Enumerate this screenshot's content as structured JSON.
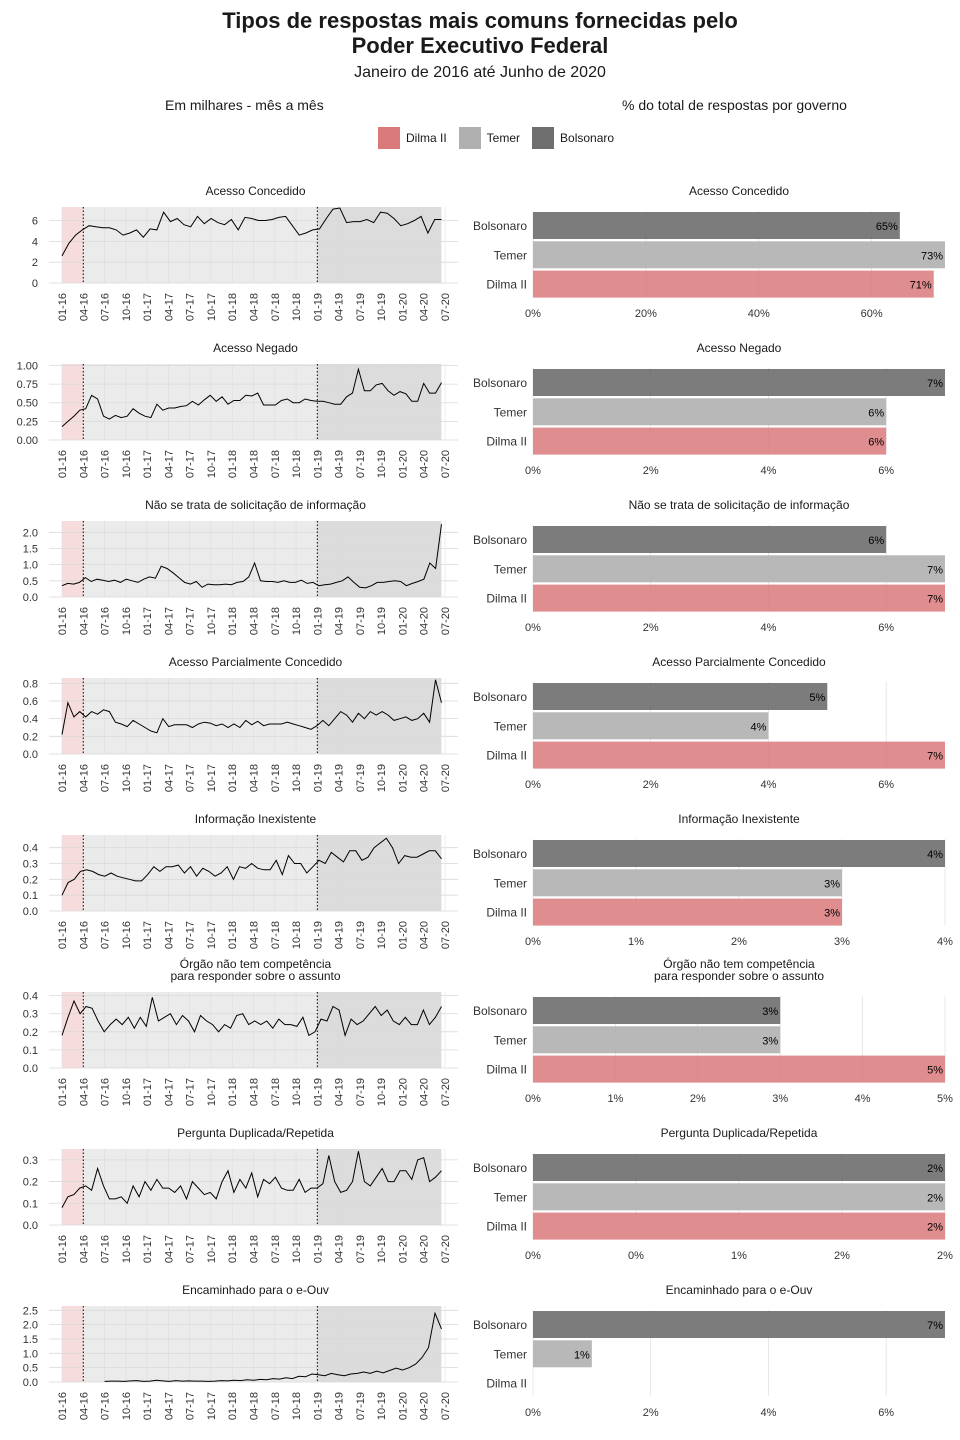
{
  "header": {
    "title_line1": "Tipos de respostas mais comuns fornecidas pelo",
    "title_line2": "Poder Executivo Federal",
    "subtitle": "Janeiro de 2016 até Junho de 2020",
    "left_caption": "Em milhares - mês a mês",
    "right_caption": "% do total de respostas por governo"
  },
  "legend": [
    {
      "label": "Dilma II",
      "color": "#D9797B"
    },
    {
      "label": "Temer",
      "color": "#B0B0B0"
    },
    {
      "label": "Bolsonaro",
      "color": "#6E6E6E"
    }
  ],
  "colors": {
    "dilma": "#D9797B",
    "temer": "#B0B0B0",
    "bolsonaro": "#6E6E6E",
    "period_dilma": "#F6DCDC",
    "period_temer": "#EBEBEB",
    "period_bolsonaro": "#DCDCDC",
    "grid": "#D9D9D9",
    "line": "#000000"
  },
  "chart_data": [
    {
      "type": "line",
      "title": "Acesso Concedido",
      "xlabel": "",
      "ylabel": "Em milhares",
      "x_ticks": [
        "01-16",
        "04-16",
        "07-16",
        "10-16",
        "01-17",
        "04-17",
        "07-17",
        "10-17",
        "01-18",
        "04-18",
        "07-18",
        "10-18",
        "01-19",
        "04-19",
        "07-19",
        "10-19",
        "01-20",
        "04-20",
        "07-20"
      ],
      "y_ticks": [
        "0",
        "2",
        "4",
        "6"
      ],
      "ylim": [
        0,
        7.3
      ],
      "period_boundaries": [
        "04-16",
        "01-19"
      ],
      "y": [
        2.6,
        3.8,
        4.6,
        5.1,
        5.5,
        5.4,
        5.3,
        5.3,
        5.1,
        4.6,
        4.8,
        5.1,
        4.4,
        5.2,
        5.1,
        6.8,
        5.9,
        6.2,
        5.6,
        5.4,
        6.4,
        5.7,
        6.2,
        5.8,
        5.6,
        6.1,
        5.1,
        6.3,
        6.2,
        6.0,
        6.0,
        6.1,
        6.3,
        6.4,
        5.5,
        4.6,
        4.8,
        5.1,
        5.2,
        6.2,
        7.1,
        7.2,
        5.8,
        5.9,
        5.9,
        6.1,
        5.8,
        6.8,
        6.7,
        6.2,
        5.5,
        5.7,
        6.0,
        6.4,
        4.8,
        6.1,
        6.1
      ]
    },
    {
      "type": "line",
      "title": "Acesso Negado",
      "xlabel": "",
      "ylabel": "Em milhares",
      "x_ticks": [
        "01-16",
        "04-16",
        "07-16",
        "10-16",
        "01-17",
        "04-17",
        "07-17",
        "10-17",
        "01-18",
        "04-18",
        "07-18",
        "10-18",
        "01-19",
        "04-19",
        "07-19",
        "10-19",
        "01-20",
        "04-20",
        "07-20"
      ],
      "y_ticks": [
        "0.00",
        "0.25",
        "0.50",
        "0.75",
        "1.00"
      ],
      "ylim": [
        0,
        1.02
      ],
      "period_boundaries": [
        "04-16",
        "01-19"
      ],
      "y": [
        0.18,
        0.25,
        0.32,
        0.4,
        0.42,
        0.6,
        0.55,
        0.32,
        0.28,
        0.33,
        0.3,
        0.32,
        0.42,
        0.36,
        0.32,
        0.3,
        0.48,
        0.4,
        0.43,
        0.43,
        0.45,
        0.46,
        0.52,
        0.47,
        0.54,
        0.6,
        0.52,
        0.58,
        0.48,
        0.53,
        0.53,
        0.6,
        0.59,
        0.63,
        0.47,
        0.47,
        0.47,
        0.53,
        0.55,
        0.5,
        0.5,
        0.55,
        0.53,
        0.52,
        0.52,
        0.5,
        0.48,
        0.48,
        0.58,
        0.63,
        0.95,
        0.66,
        0.66,
        0.74,
        0.76,
        0.66,
        0.6,
        0.65,
        0.62,
        0.52,
        0.52,
        0.76,
        0.63,
        0.63,
        0.77
      ]
    },
    {
      "type": "line",
      "title": "Não se trata de solicitação de informação",
      "xlabel": "",
      "ylabel": "Em milhares",
      "x_ticks": [
        "01-16",
        "04-16",
        "07-16",
        "10-16",
        "01-17",
        "04-17",
        "07-17",
        "10-17",
        "01-18",
        "04-18",
        "07-18",
        "10-18",
        "01-19",
        "04-19",
        "07-19",
        "10-19",
        "01-20",
        "04-20",
        "07-20"
      ],
      "y_ticks": [
        "0.0",
        "0.5",
        "1.0",
        "1.5",
        "2.0"
      ],
      "ylim": [
        0,
        2.35
      ],
      "period_boundaries": [
        "04-16",
        "01-19"
      ],
      "y": [
        0.35,
        0.42,
        0.4,
        0.45,
        0.6,
        0.48,
        0.55,
        0.52,
        0.48,
        0.52,
        0.45,
        0.55,
        0.5,
        0.45,
        0.55,
        0.62,
        0.58,
        0.95,
        0.88,
        0.75,
        0.6,
        0.45,
        0.4,
        0.48,
        0.3,
        0.4,
        0.38,
        0.38,
        0.4,
        0.38,
        0.45,
        0.48,
        0.62,
        1.05,
        0.5,
        0.48,
        0.48,
        0.45,
        0.5,
        0.45,
        0.45,
        0.52,
        0.42,
        0.45,
        0.35,
        0.38,
        0.4,
        0.45,
        0.5,
        0.62,
        0.45,
        0.3,
        0.28,
        0.35,
        0.45,
        0.45,
        0.48,
        0.5,
        0.48,
        0.35,
        0.42,
        0.48,
        0.55,
        1.05,
        0.88,
        2.25
      ]
    },
    {
      "type": "line",
      "title": "Acesso Parcialmente Concedido",
      "xlabel": "",
      "ylabel": "Em milhares",
      "x_ticks": [
        "01-16",
        "04-16",
        "07-16",
        "10-16",
        "01-17",
        "04-17",
        "07-17",
        "10-17",
        "01-18",
        "04-18",
        "07-18",
        "10-18",
        "01-19",
        "04-19",
        "07-19",
        "10-19",
        "01-20",
        "04-20",
        "07-20"
      ],
      "y_ticks": [
        "0.0",
        "0.2",
        "0.4",
        "0.6",
        "0.8"
      ],
      "ylim": [
        0,
        0.86
      ],
      "period_boundaries": [
        "04-16",
        "01-19"
      ],
      "y": [
        0.22,
        0.58,
        0.42,
        0.48,
        0.42,
        0.48,
        0.45,
        0.5,
        0.48,
        0.36,
        0.34,
        0.31,
        0.38,
        0.34,
        0.3,
        0.26,
        0.24,
        0.4,
        0.31,
        0.33,
        0.33,
        0.33,
        0.3,
        0.34,
        0.36,
        0.35,
        0.32,
        0.34,
        0.3,
        0.34,
        0.3,
        0.38,
        0.33,
        0.37,
        0.32,
        0.34,
        0.34,
        0.34,
        0.36,
        0.34,
        0.32,
        0.3,
        0.28,
        0.32,
        0.38,
        0.32,
        0.4,
        0.48,
        0.44,
        0.36,
        0.46,
        0.4,
        0.48,
        0.44,
        0.48,
        0.44,
        0.38,
        0.4,
        0.42,
        0.38,
        0.4,
        0.46,
        0.36,
        0.84,
        0.58
      ]
    },
    {
      "type": "line",
      "title": "Informação Inexistente",
      "xlabel": "",
      "ylabel": "Em milhares",
      "x_ticks": [
        "01-16",
        "04-16",
        "07-16",
        "10-16",
        "01-17",
        "04-17",
        "07-17",
        "10-17",
        "01-18",
        "04-18",
        "07-18",
        "10-18",
        "01-19",
        "04-19",
        "07-19",
        "10-19",
        "01-20",
        "04-20",
        "07-20"
      ],
      "y_ticks": [
        "0.0",
        "0.1",
        "0.2",
        "0.3",
        "0.4"
      ],
      "ylim": [
        0,
        0.48
      ],
      "period_boundaries": [
        "04-16",
        "01-19"
      ],
      "y": [
        0.1,
        0.18,
        0.2,
        0.25,
        0.26,
        0.25,
        0.23,
        0.22,
        0.24,
        0.22,
        0.21,
        0.2,
        0.19,
        0.19,
        0.23,
        0.28,
        0.25,
        0.28,
        0.28,
        0.29,
        0.24,
        0.28,
        0.22,
        0.27,
        0.25,
        0.22,
        0.24,
        0.28,
        0.2,
        0.28,
        0.27,
        0.3,
        0.27,
        0.26,
        0.26,
        0.32,
        0.23,
        0.35,
        0.3,
        0.3,
        0.24,
        0.28,
        0.32,
        0.3,
        0.37,
        0.34,
        0.31,
        0.38,
        0.38,
        0.32,
        0.34,
        0.4,
        0.43,
        0.46,
        0.4,
        0.3,
        0.35,
        0.34,
        0.34,
        0.36,
        0.38,
        0.38,
        0.33
      ]
    },
    {
      "type": "line",
      "title": "Órgão não tem competência\npara responder sobre o assunto",
      "xlabel": "",
      "ylabel": "Em milhares",
      "x_ticks": [
        "01-16",
        "04-16",
        "07-16",
        "10-16",
        "01-17",
        "04-17",
        "07-17",
        "10-17",
        "01-18",
        "04-18",
        "07-18",
        "10-18",
        "01-19",
        "04-19",
        "07-19",
        "10-19",
        "01-20",
        "04-20",
        "07-20"
      ],
      "y_ticks": [
        "0.0",
        "0.1",
        "0.2",
        "0.3",
        "0.4"
      ],
      "ylim": [
        0,
        0.42
      ],
      "period_boundaries": [
        "04-16",
        "01-19"
      ],
      "y": [
        0.18,
        0.28,
        0.37,
        0.3,
        0.34,
        0.33,
        0.26,
        0.2,
        0.24,
        0.27,
        0.24,
        0.28,
        0.22,
        0.28,
        0.23,
        0.39,
        0.26,
        0.28,
        0.3,
        0.24,
        0.29,
        0.26,
        0.2,
        0.29,
        0.26,
        0.24,
        0.2,
        0.24,
        0.22,
        0.29,
        0.3,
        0.24,
        0.26,
        0.24,
        0.26,
        0.22,
        0.27,
        0.24,
        0.24,
        0.23,
        0.28,
        0.18,
        0.2,
        0.27,
        0.26,
        0.34,
        0.32,
        0.18,
        0.27,
        0.24,
        0.26,
        0.3,
        0.34,
        0.29,
        0.32,
        0.26,
        0.24,
        0.28,
        0.24,
        0.24,
        0.32,
        0.24,
        0.28,
        0.34
      ]
    },
    {
      "type": "line",
      "title": "Pergunta Duplicada/Repetida",
      "xlabel": "",
      "ylabel": "Em milhares",
      "x_ticks": [
        "01-16",
        "04-16",
        "07-16",
        "10-16",
        "01-17",
        "04-17",
        "07-17",
        "10-17",
        "01-18",
        "04-18",
        "07-18",
        "10-18",
        "01-19",
        "04-19",
        "07-19",
        "10-19",
        "01-20",
        "04-20",
        "07-20"
      ],
      "y_ticks": [
        "0.0",
        "0.1",
        "0.2",
        "0.3"
      ],
      "ylim": [
        0,
        0.35
      ],
      "period_boundaries": [
        "04-16",
        "01-19"
      ],
      "y": [
        0.08,
        0.13,
        0.14,
        0.17,
        0.18,
        0.16,
        0.26,
        0.18,
        0.12,
        0.12,
        0.13,
        0.1,
        0.18,
        0.13,
        0.2,
        0.16,
        0.21,
        0.17,
        0.17,
        0.15,
        0.18,
        0.12,
        0.2,
        0.17,
        0.14,
        0.15,
        0.12,
        0.2,
        0.25,
        0.15,
        0.21,
        0.17,
        0.24,
        0.13,
        0.21,
        0.19,
        0.22,
        0.17,
        0.16,
        0.16,
        0.21,
        0.15,
        0.17,
        0.17,
        0.19,
        0.32,
        0.2,
        0.15,
        0.16,
        0.2,
        0.34,
        0.2,
        0.18,
        0.22,
        0.26,
        0.2,
        0.2,
        0.25,
        0.25,
        0.21,
        0.3,
        0.31,
        0.2,
        0.22,
        0.25
      ]
    },
    {
      "type": "line",
      "title": "Encaminhado para o e-Ouv",
      "xlabel": "",
      "ylabel": "Em milhares",
      "x_ticks": [
        "01-16",
        "04-16",
        "07-16",
        "10-16",
        "01-17",
        "04-17",
        "07-17",
        "10-17",
        "01-18",
        "04-18",
        "07-18",
        "10-18",
        "01-19",
        "04-19",
        "07-19",
        "10-19",
        "01-20",
        "04-20",
        "07-20"
      ],
      "y_ticks": [
        "0.0",
        "0.5",
        "1.0",
        "1.5",
        "2.0",
        "2.5"
      ],
      "ylim": [
        0,
        2.65
      ],
      "period_boundaries": [
        "04-16",
        "01-19"
      ],
      "y_start_index": 6,
      "y": [
        0.02,
        0.03,
        0.03,
        0.02,
        0.04,
        0.05,
        0.02,
        0.03,
        0.06,
        0.04,
        0.02,
        0.05,
        0.03,
        0.04,
        0.03,
        0.03,
        0.02,
        0.03,
        0.05,
        0.04,
        0.06,
        0.05,
        0.08,
        0.06,
        0.09,
        0.08,
        0.12,
        0.1,
        0.15,
        0.12,
        0.2,
        0.18,
        0.28,
        0.25,
        0.22,
        0.3,
        0.25,
        0.22,
        0.28,
        0.3,
        0.35,
        0.3,
        0.38,
        0.32,
        0.4,
        0.48,
        0.42,
        0.5,
        0.62,
        0.85,
        1.2,
        2.4,
        1.85
      ]
    },
    {
      "type": "bar",
      "orientation": "horizontal",
      "title": "Acesso Concedido",
      "categories": [
        "Bolsonaro",
        "Temer",
        "Dilma II"
      ],
      "values": [
        65,
        73,
        71
      ],
      "value_labels": [
        "65%",
        "73%",
        "71%"
      ],
      "x_ticks": [
        "0%",
        "20%",
        "40%",
        "60%"
      ],
      "x_tick_values": [
        0,
        20,
        40,
        60
      ],
      "xlim": [
        0,
        73
      ]
    },
    {
      "type": "bar",
      "orientation": "horizontal",
      "title": "Acesso Negado",
      "categories": [
        "Bolsonaro",
        "Temer",
        "Dilma II"
      ],
      "values": [
        7,
        6,
        6
      ],
      "value_labels": [
        "7%",
        "6%",
        "6%"
      ],
      "x_ticks": [
        "0%",
        "2%",
        "4%",
        "6%"
      ],
      "x_tick_values": [
        0,
        2,
        4,
        6
      ],
      "xlim": [
        0,
        7
      ]
    },
    {
      "type": "bar",
      "orientation": "horizontal",
      "title": "Não se trata de solicitação de informação",
      "categories": [
        "Bolsonaro",
        "Temer",
        "Dilma II"
      ],
      "values": [
        6,
        7,
        7
      ],
      "value_labels": [
        "6%",
        "7%",
        "7%"
      ],
      "x_ticks": [
        "0%",
        "2%",
        "4%",
        "6%"
      ],
      "x_tick_values": [
        0,
        2,
        4,
        6
      ],
      "xlim": [
        0,
        7
      ]
    },
    {
      "type": "bar",
      "orientation": "horizontal",
      "title": "Acesso Parcialmente Concedido",
      "categories": [
        "Bolsonaro",
        "Temer",
        "Dilma II"
      ],
      "values": [
        5,
        4,
        7
      ],
      "value_labels": [
        "5%",
        "4%",
        "7%"
      ],
      "x_ticks": [
        "0%",
        "2%",
        "4%",
        "6%"
      ],
      "x_tick_values": [
        0,
        2,
        4,
        6
      ],
      "xlim": [
        0,
        7
      ]
    },
    {
      "type": "bar",
      "orientation": "horizontal",
      "title": "Informação Inexistente",
      "categories": [
        "Bolsonaro",
        "Temer",
        "Dilma II"
      ],
      "values": [
        4,
        3,
        3
      ],
      "value_labels": [
        "4%",
        "3%",
        "3%"
      ],
      "x_ticks": [
        "0%",
        "1%",
        "2%",
        "3%",
        "4%"
      ],
      "x_tick_values": [
        0,
        1,
        2,
        3,
        4
      ],
      "xlim": [
        0,
        4
      ]
    },
    {
      "type": "bar",
      "orientation": "horizontal",
      "title": "Órgão não tem competência\npara responder sobre o assunto",
      "categories": [
        "Bolsonaro",
        "Temer",
        "Dilma II"
      ],
      "values": [
        3,
        3,
        5
      ],
      "value_labels": [
        "3%",
        "3%",
        "5%"
      ],
      "x_ticks": [
        "0%",
        "1%",
        "2%",
        "3%",
        "4%",
        "5%"
      ],
      "x_tick_values": [
        0,
        1,
        2,
        3,
        4,
        5
      ],
      "xlim": [
        0,
        5
      ]
    },
    {
      "type": "bar",
      "orientation": "horizontal",
      "title": "Pergunta Duplicada/Repetida",
      "categories": [
        "Bolsonaro",
        "Temer",
        "Dilma II"
      ],
      "values": [
        2,
        2,
        2
      ],
      "value_labels": [
        "2%",
        "2%",
        "2%"
      ],
      "x_ticks": [
        "0%",
        "0%",
        "1%",
        "2%",
        "2%"
      ],
      "x_tick_values": [
        0,
        0.5,
        1,
        1.5,
        2
      ],
      "xlim": [
        0,
        2
      ]
    },
    {
      "type": "bar",
      "orientation": "horizontal",
      "title": "Encaminhado para o e-Ouv",
      "categories": [
        "Bolsonaro",
        "Temer",
        "Dilma II"
      ],
      "values": [
        7,
        1,
        0
      ],
      "value_labels": [
        "7%",
        "1%",
        ""
      ],
      "x_ticks": [
        "0%",
        "2%",
        "4%",
        "6%"
      ],
      "x_tick_values": [
        0,
        2,
        4,
        6
      ],
      "xlim": [
        0,
        7
      ]
    }
  ]
}
